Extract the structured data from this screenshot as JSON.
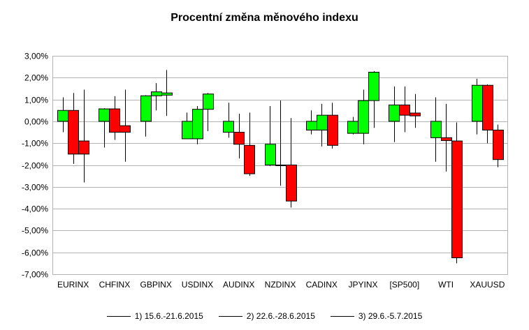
{
  "chart_data": {
    "type": "candlestick",
    "title": "Procentní změna měnového indexu",
    "xlabel": "",
    "ylabel": "",
    "ylim": [
      -7,
      3
    ],
    "y_tick_step": 1,
    "y_tick_labels": [
      "3,00%",
      "2,00%",
      "1,00%",
      "0,00%",
      "-1,00%",
      "-2,00%",
      "-3,00%",
      "-4,00%",
      "-5,00%",
      "-6,00%",
      "-7,00%"
    ],
    "grid": true,
    "legend_position": "bottom",
    "up_color": "#00ff00",
    "down_color": "#ff0000",
    "categories": [
      "EURINX",
      "CHFINX",
      "GBPINX",
      "USDINX",
      "AUDINX",
      "NZDINX",
      "CADINX",
      "JPYINX",
      "[SP500]",
      "WTI",
      "XAUUSD"
    ],
    "series": [
      {
        "name": "1) 15.6.-21.6.2015",
        "open": [
          0,
          0,
          0,
          -0.8,
          -0.5,
          -2.0,
          -0.4,
          -0.55,
          0,
          -0.75,
          0
        ],
        "close": [
          0.5,
          0.57,
          1.17,
          0,
          0,
          -1.05,
          0,
          0,
          0.75,
          0,
          1.65
        ],
        "high": [
          1.1,
          0.6,
          1.2,
          0.4,
          0.85,
          0.7,
          0.5,
          0.2,
          1.6,
          1.1,
          1.95
        ],
        "low": [
          -0.5,
          -1.2,
          -0.7,
          -0.8,
          -0.75,
          -2.05,
          -0.6,
          -0.6,
          -0.95,
          -1.85,
          -0.6
        ]
      },
      {
        "name": "2) 22.6.-28.6.2015",
        "open": [
          0.5,
          0.57,
          1.17,
          -0.8,
          -0.5,
          -2.0,
          -0.4,
          -0.55,
          0.75,
          -0.75,
          1.65
        ],
        "close": [
          -1.5,
          -0.5,
          1.35,
          0.55,
          -1.05,
          -2.02,
          0.28,
          0.95,
          0.28,
          -0.88,
          -0.4
        ],
        "high": [
          1.3,
          1.15,
          1.75,
          0.7,
          0.35,
          0.95,
          0.8,
          1.45,
          1.6,
          0.8,
          1.7
        ],
        "low": [
          -1.95,
          -0.85,
          0.5,
          -1.05,
          -1.7,
          -2.95,
          -1.15,
          -1.05,
          -0.5,
          -2.3,
          -1.0
        ]
      },
      {
        "name": "3) 29.6.-5.7.2015",
        "open": [
          -0.9,
          -0.2,
          1.2,
          0.55,
          -1.1,
          -2.0,
          0.28,
          0.95,
          0.38,
          -0.9,
          -0.4
        ],
        "close": [
          -1.5,
          -0.5,
          1.3,
          1.25,
          -2.4,
          -3.65,
          -1.1,
          2.25,
          0.25,
          -6.25,
          -1.75
        ],
        "high": [
          1.45,
          1.45,
          2.35,
          1.3,
          0.4,
          0.15,
          0.85,
          2.3,
          1.25,
          -0.05,
          -0.15
        ],
        "low": [
          -2.8,
          -1.85,
          0.25,
          -0.45,
          -2.5,
          -3.95,
          -1.25,
          -0.3,
          -0.3,
          -6.5,
          -2.1
        ]
      }
    ]
  }
}
